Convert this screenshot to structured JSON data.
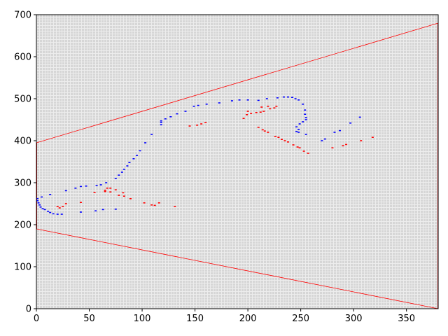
{
  "chart_data": {
    "type": "scatter",
    "title": "",
    "xlabel": "",
    "ylabel": "",
    "xlim": [
      0,
      380
    ],
    "ylim": [
      0,
      700
    ],
    "grid": true,
    "legend": "none",
    "x_ticks": [
      "0",
      "50",
      "100",
      "150",
      "200",
      "250",
      "300",
      "350"
    ],
    "y_ticks": [
      "0",
      "100",
      "200",
      "300",
      "400",
      "500",
      "600",
      "700"
    ],
    "x_tick_values": [
      0,
      50,
      100,
      150,
      200,
      250,
      300,
      350
    ],
    "y_tick_values": [
      0,
      100,
      200,
      300,
      400,
      500,
      600,
      700
    ],
    "lines": [
      {
        "color": "#ff0000",
        "x": [
          0,
          380
        ],
        "y": [
          395,
          680
        ]
      },
      {
        "color": "#ff0000",
        "x": [
          0,
          380
        ],
        "y": [
          190,
          0
        ]
      },
      {
        "color": "#cc0000",
        "x": [
          0,
          0
        ],
        "y": [
          190,
          395
        ]
      },
      {
        "color": "#cc0000",
        "x": [
          380,
          380
        ],
        "y": [
          0,
          680
        ]
      }
    ],
    "series": [
      {
        "color": "#0000ff",
        "points": [
          [
            1,
            262
          ],
          [
            1,
            257
          ],
          [
            2,
            252
          ],
          [
            3,
            247
          ],
          [
            4,
            242
          ],
          [
            6,
            238
          ],
          [
            8,
            236
          ],
          [
            11,
            232
          ],
          [
            13,
            229
          ],
          [
            16,
            226
          ],
          [
            20,
            225
          ],
          [
            24,
            225
          ],
          [
            5,
            266
          ],
          [
            13,
            272
          ],
          [
            28,
            281
          ],
          [
            37,
            287
          ],
          [
            42,
            291
          ],
          [
            47,
            292
          ],
          [
            57,
            293
          ],
          [
            61,
            295
          ],
          [
            66,
            300
          ],
          [
            75,
            310
          ],
          [
            78,
            318
          ],
          [
            81,
            325
          ],
          [
            83,
            332
          ],
          [
            86,
            340
          ],
          [
            88,
            348
          ],
          [
            92,
            357
          ],
          [
            95,
            365
          ],
          [
            98,
            376
          ],
          [
            103,
            395
          ],
          [
            109,
            415
          ],
          [
            118,
            438
          ],
          [
            118,
            443
          ],
          [
            118,
            447
          ],
          [
            122,
            452
          ],
          [
            127,
            457
          ],
          [
            133,
            464
          ],
          [
            141,
            470
          ],
          [
            149,
            482
          ],
          [
            153,
            484
          ],
          [
            161,
            487
          ],
          [
            173,
            490
          ],
          [
            185,
            495
          ],
          [
            192,
            497
          ],
          [
            200,
            497
          ],
          [
            210,
            496
          ],
          [
            218,
            500
          ],
          [
            228,
            502
          ],
          [
            234,
            504
          ],
          [
            238,
            504
          ],
          [
            242,
            503
          ],
          [
            245,
            500
          ],
          [
            248,
            497
          ],
          [
            252,
            487
          ],
          [
            254,
            473
          ],
          [
            254,
            463
          ],
          [
            255,
            455
          ],
          [
            255,
            450
          ],
          [
            252,
            445
          ],
          [
            249,
            440
          ],
          [
            246,
            433
          ],
          [
            248,
            427
          ],
          [
            246,
            422
          ],
          [
            248,
            420
          ],
          [
            255,
            415
          ],
          [
            42,
            230
          ],
          [
            56,
            233
          ],
          [
            63,
            236
          ],
          [
            75,
            237
          ],
          [
            270,
            400
          ],
          [
            273,
            404
          ],
          [
            282,
            420
          ],
          [
            287,
            424
          ],
          [
            297,
            442
          ],
          [
            306,
            456
          ]
        ]
      },
      {
        "color": "#ff0000",
        "points": [
          [
            20,
            243
          ],
          [
            22,
            240
          ],
          [
            25,
            243
          ],
          [
            28,
            250
          ],
          [
            42,
            253
          ],
          [
            55,
            277
          ],
          [
            65,
            282
          ],
          [
            65,
            279
          ],
          [
            67,
            287
          ],
          [
            70,
            287
          ],
          [
            70,
            278
          ],
          [
            75,
            283
          ],
          [
            78,
            270
          ],
          [
            82,
            276
          ],
          [
            83,
            268
          ],
          [
            89,
            262
          ],
          [
            102,
            252
          ],
          [
            109,
            247
          ],
          [
            112,
            246
          ],
          [
            116,
            252
          ],
          [
            131,
            243
          ],
          [
            145,
            435
          ],
          [
            152,
            437
          ],
          [
            156,
            440
          ],
          [
            160,
            443
          ],
          [
            196,
            453
          ],
          [
            199,
            462
          ],
          [
            200,
            470
          ],
          [
            203,
            465
          ],
          [
            208,
            467
          ],
          [
            212,
            468
          ],
          [
            213,
            480
          ],
          [
            215,
            470
          ],
          [
            219,
            482
          ],
          [
            221,
            476
          ],
          [
            225,
            478
          ],
          [
            227,
            482
          ],
          [
            210,
            432
          ],
          [
            214,
            426
          ],
          [
            216,
            423
          ],
          [
            219,
            420
          ],
          [
            226,
            410
          ],
          [
            229,
            408
          ],
          [
            232,
            403
          ],
          [
            235,
            400
          ],
          [
            238,
            397
          ],
          [
            243,
            390
          ],
          [
            247,
            385
          ],
          [
            249,
            383
          ],
          [
            253,
            375
          ],
          [
            257,
            370
          ],
          [
            280,
            383
          ],
          [
            290,
            388
          ],
          [
            293,
            391
          ],
          [
            307,
            400
          ],
          [
            318,
            408
          ]
        ]
      }
    ]
  }
}
